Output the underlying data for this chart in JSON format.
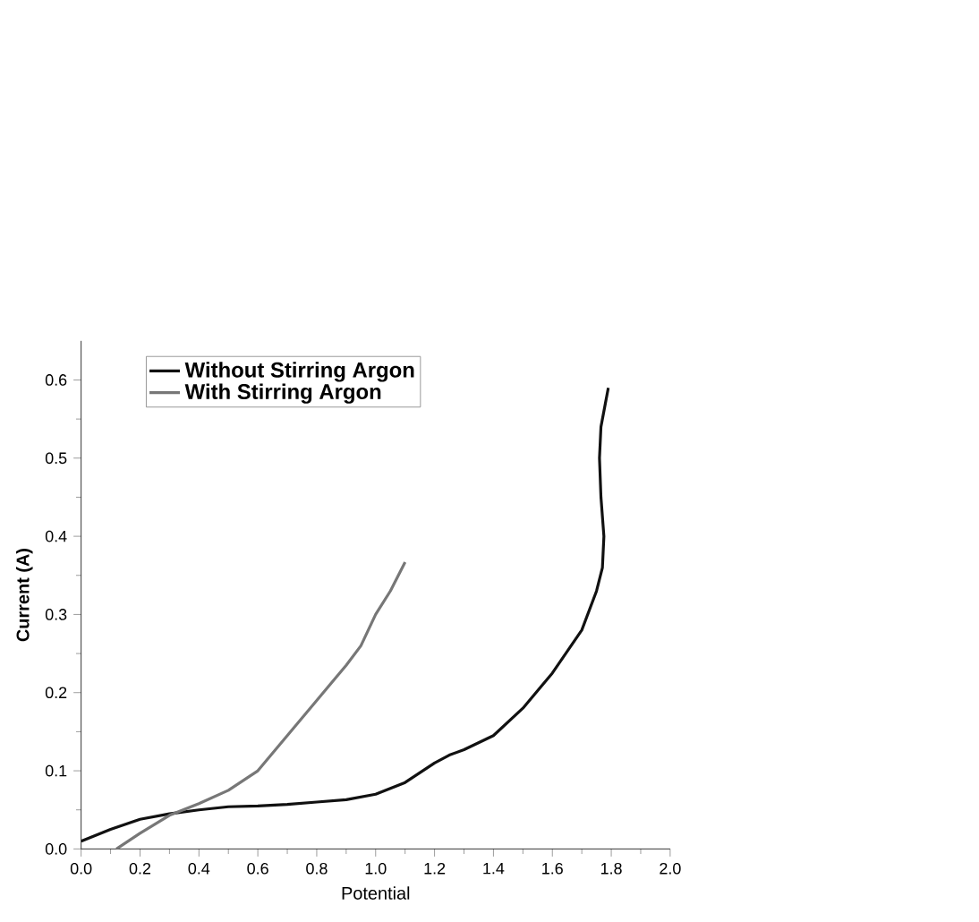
{
  "chart_data": {
    "type": "line",
    "xlabel": "Potential",
    "ylabel": "Current (A)",
    "xlim": [
      0,
      2.0
    ],
    "ylim": [
      0,
      0.65
    ],
    "xticks": [
      {
        "value": 0,
        "label": "0.0"
      },
      0.2,
      0.4,
      0.6,
      0.8,
      {
        "value": 1,
        "label": "1.0"
      },
      1.2,
      1.4,
      1.6,
      1.8,
      {
        "value": 2,
        "label": "2.0"
      }
    ],
    "yticks": [
      {
        "value": 0,
        "label": "0.0"
      },
      0.1,
      0.2,
      0.3,
      0.4,
      0.5,
      0.6
    ],
    "legend": "top left",
    "grid": false,
    "marker": "none",
    "line_style": "solid",
    "series": [
      {
        "name": "Without Stirring Argon",
        "color": "#111111",
        "x": [
          0,
          0.1,
          0.2,
          0.3,
          0.4,
          0.5,
          0.6,
          0.7,
          0.8,
          0.9,
          1.0,
          1.1,
          1.2,
          1.25,
          1.3,
          1.4,
          1.5,
          1.6,
          1.7,
          1.75,
          1.77,
          1.775,
          1.765,
          1.76,
          1.765,
          1.78,
          1.79
        ],
        "values": [
          0.01,
          0.025,
          0.038,
          0.045,
          0.05,
          0.054,
          0.055,
          0.057,
          0.06,
          0.063,
          0.07,
          0.085,
          0.11,
          0.12,
          0.127,
          0.145,
          0.18,
          0.225,
          0.28,
          0.33,
          0.36,
          0.4,
          0.45,
          0.5,
          0.54,
          0.57,
          0.59
        ]
      },
      {
        "name": "With Stirring Argon",
        "color": "#777777",
        "x": [
          0.12,
          0.2,
          0.3,
          0.4,
          0.5,
          0.6,
          0.7,
          0.8,
          0.9,
          0.95,
          1.0,
          1.05,
          1.1
        ],
        "values": [
          0.0,
          0.02,
          0.043,
          0.058,
          0.075,
          0.1,
          0.145,
          0.19,
          0.235,
          0.26,
          0.3,
          0.33,
          0.367
        ]
      }
    ]
  }
}
